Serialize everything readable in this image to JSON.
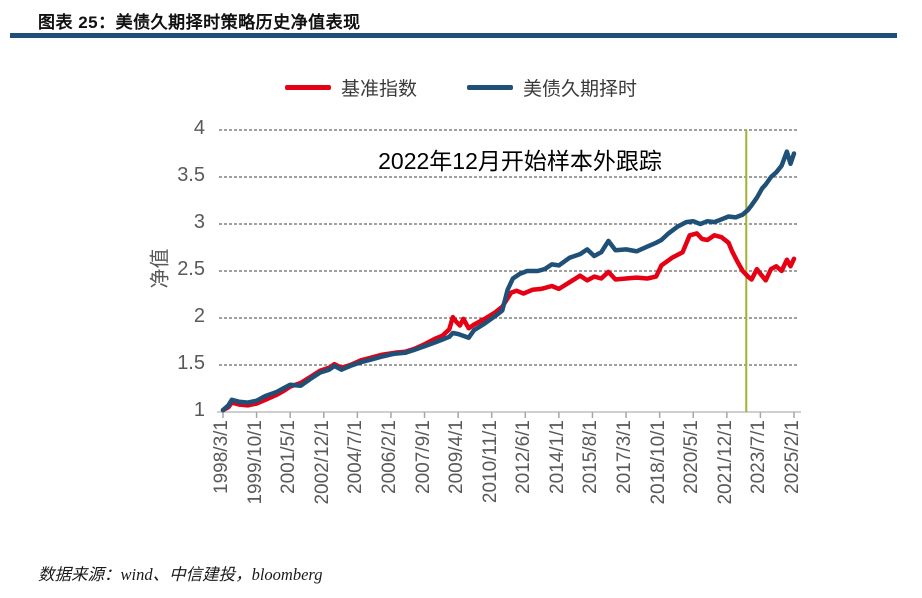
{
  "header": {
    "title": "图表 25：美债久期择时策略历史净值表现"
  },
  "footer": {
    "source": "数据来源：wind、中信建投，bloomberg"
  },
  "chart_data": {
    "type": "line",
    "title": "美债久期择时策略历史净值表现",
    "ylabel": "净值",
    "annotation": "2022年12月开始样本外跟踪",
    "ylim": [
      1,
      4
    ],
    "yticks": [
      1,
      1.5,
      2,
      2.5,
      3,
      3.5,
      4
    ],
    "grid": "horizontal-dashed",
    "legend_position": "top-center",
    "x_unit": "months since 1998/3/1",
    "x_max": 323,
    "xticks": [
      {
        "month": 0,
        "label": "1998/3/1"
      },
      {
        "month": 19,
        "label": "1999/10/1"
      },
      {
        "month": 38,
        "label": "2001/5/1"
      },
      {
        "month": 57,
        "label": "2002/12/1"
      },
      {
        "month": 76,
        "label": "2004/7/1"
      },
      {
        "month": 95,
        "label": "2006/2/1"
      },
      {
        "month": 114,
        "label": "2007/9/1"
      },
      {
        "month": 133,
        "label": "2009/4/1"
      },
      {
        "month": 152,
        "label": "2010/11/1"
      },
      {
        "month": 171,
        "label": "2012/6/1"
      },
      {
        "month": 190,
        "label": "2014/1/1"
      },
      {
        "month": 209,
        "label": "2015/8/1"
      },
      {
        "month": 228,
        "label": "2017/3/1"
      },
      {
        "month": 247,
        "label": "2018/10/1"
      },
      {
        "month": 266,
        "label": "2020/5/1"
      },
      {
        "month": 285,
        "label": "2021/12/1"
      },
      {
        "month": 304,
        "label": "2023/7/1"
      },
      {
        "month": 323,
        "label": "2025/2/1"
      }
    ],
    "vline": {
      "month": 296,
      "refers_to": "2022/12",
      "color": "#a3b135"
    },
    "colors": {
      "base": "#e60014",
      "strategy": "#1e5078",
      "grid": "#404040",
      "axis": "#bfbfbf",
      "tick_text": "#595959",
      "title_rule": "#1F4E79"
    },
    "series": [
      {
        "name": "基准指数",
        "color_key": "base",
        "points": [
          [
            0,
            1.02
          ],
          [
            3,
            1.05
          ],
          [
            5,
            1.1
          ],
          [
            9,
            1.08
          ],
          [
            14,
            1.07
          ],
          [
            19,
            1.09
          ],
          [
            24,
            1.13
          ],
          [
            30,
            1.18
          ],
          [
            34,
            1.22
          ],
          [
            38,
            1.27
          ],
          [
            44,
            1.31
          ],
          [
            50,
            1.38
          ],
          [
            55,
            1.44
          ],
          [
            60,
            1.47
          ],
          [
            63,
            1.51
          ],
          [
            67,
            1.47
          ],
          [
            72,
            1.5
          ],
          [
            78,
            1.55
          ],
          [
            84,
            1.58
          ],
          [
            90,
            1.61
          ],
          [
            97,
            1.63
          ],
          [
            103,
            1.64
          ],
          [
            108,
            1.67
          ],
          [
            114,
            1.72
          ],
          [
            120,
            1.78
          ],
          [
            124,
            1.81
          ],
          [
            128,
            1.88
          ],
          [
            130,
            2.01
          ],
          [
            132,
            1.96
          ],
          [
            134,
            1.92
          ],
          [
            136,
            1.99
          ],
          [
            139,
            1.89
          ],
          [
            142,
            1.93
          ],
          [
            148,
            1.99
          ],
          [
            154,
            2.06
          ],
          [
            158,
            2.12
          ],
          [
            163,
            2.27
          ],
          [
            166,
            2.29
          ],
          [
            170,
            2.26
          ],
          [
            175,
            2.3
          ],
          [
            180,
            2.31
          ],
          [
            186,
            2.34
          ],
          [
            190,
            2.31
          ],
          [
            196,
            2.38
          ],
          [
            202,
            2.45
          ],
          [
            206,
            2.4
          ],
          [
            210,
            2.44
          ],
          [
            214,
            2.42
          ],
          [
            218,
            2.49
          ],
          [
            222,
            2.41
          ],
          [
            228,
            2.42
          ],
          [
            234,
            2.43
          ],
          [
            240,
            2.42
          ],
          [
            245,
            2.44
          ],
          [
            248,
            2.56
          ],
          [
            254,
            2.64
          ],
          [
            260,
            2.7
          ],
          [
            264,
            2.88
          ],
          [
            268,
            2.9
          ],
          [
            271,
            2.84
          ],
          [
            274,
            2.83
          ],
          [
            278,
            2.88
          ],
          [
            282,
            2.86
          ],
          [
            286,
            2.8
          ],
          [
            288,
            2.71
          ],
          [
            291,
            2.6
          ],
          [
            294,
            2.5
          ],
          [
            297,
            2.44
          ],
          [
            299,
            2.41
          ],
          [
            302,
            2.52
          ],
          [
            304,
            2.47
          ],
          [
            307,
            2.4
          ],
          [
            310,
            2.52
          ],
          [
            313,
            2.55
          ],
          [
            316,
            2.5
          ],
          [
            319,
            2.62
          ],
          [
            321,
            2.55
          ],
          [
            323,
            2.63
          ]
        ]
      },
      {
        "name": "美债久期择时",
        "color_key": "strategy",
        "points": [
          [
            0,
            1.02
          ],
          [
            3,
            1.07
          ],
          [
            5,
            1.13
          ],
          [
            9,
            1.11
          ],
          [
            14,
            1.1
          ],
          [
            19,
            1.12
          ],
          [
            24,
            1.17
          ],
          [
            30,
            1.21
          ],
          [
            34,
            1.25
          ],
          [
            38,
            1.29
          ],
          [
            44,
            1.28
          ],
          [
            50,
            1.36
          ],
          [
            55,
            1.42
          ],
          [
            60,
            1.45
          ],
          [
            63,
            1.49
          ],
          [
            67,
            1.45
          ],
          [
            72,
            1.49
          ],
          [
            78,
            1.53
          ],
          [
            84,
            1.56
          ],
          [
            90,
            1.59
          ],
          [
            97,
            1.62
          ],
          [
            103,
            1.63
          ],
          [
            108,
            1.66
          ],
          [
            114,
            1.7
          ],
          [
            120,
            1.74
          ],
          [
            124,
            1.77
          ],
          [
            128,
            1.8
          ],
          [
            130,
            1.84
          ],
          [
            133,
            1.83
          ],
          [
            136,
            1.81
          ],
          [
            139,
            1.79
          ],
          [
            142,
            1.87
          ],
          [
            148,
            1.94
          ],
          [
            154,
            2.02
          ],
          [
            158,
            2.08
          ],
          [
            161,
            2.3
          ],
          [
            164,
            2.42
          ],
          [
            168,
            2.47
          ],
          [
            172,
            2.5
          ],
          [
            178,
            2.5
          ],
          [
            182,
            2.52
          ],
          [
            186,
            2.57
          ],
          [
            190,
            2.56
          ],
          [
            196,
            2.64
          ],
          [
            202,
            2.68
          ],
          [
            206,
            2.73
          ],
          [
            210,
            2.66
          ],
          [
            214,
            2.7
          ],
          [
            218,
            2.82
          ],
          [
            222,
            2.72
          ],
          [
            228,
            2.73
          ],
          [
            234,
            2.71
          ],
          [
            240,
            2.76
          ],
          [
            245,
            2.8
          ],
          [
            248,
            2.83
          ],
          [
            252,
            2.9
          ],
          [
            257,
            2.97
          ],
          [
            262,
            3.02
          ],
          [
            266,
            3.03
          ],
          [
            270,
            3.0
          ],
          [
            274,
            3.03
          ],
          [
            278,
            3.02
          ],
          [
            282,
            3.05
          ],
          [
            286,
            3.08
          ],
          [
            290,
            3.07
          ],
          [
            294,
            3.1
          ],
          [
            297,
            3.15
          ],
          [
            299,
            3.2
          ],
          [
            302,
            3.28
          ],
          [
            305,
            3.38
          ],
          [
            307,
            3.42
          ],
          [
            310,
            3.5
          ],
          [
            313,
            3.55
          ],
          [
            316,
            3.62
          ],
          [
            319,
            3.77
          ],
          [
            321,
            3.64
          ],
          [
            323,
            3.75
          ]
        ]
      }
    ]
  }
}
